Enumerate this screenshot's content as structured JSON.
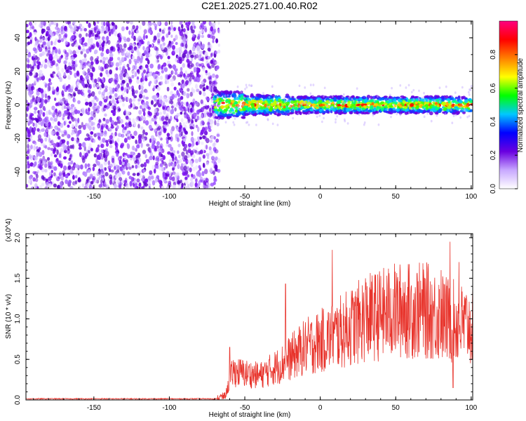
{
  "title": "C2E1.2025.271.00.40.R02",
  "colors": {
    "snr_line": "#e8342c",
    "scatter_main": "#6a00e0",
    "axis": "#000000"
  },
  "chart_data": [
    {
      "type": "heatmap",
      "name": "spectrogram",
      "xlabel": "Height of straight line (km)",
      "ylabel": "Frequency (Hz)",
      "xlim": [
        -195,
        101
      ],
      "ylim": [
        -50,
        50
      ],
      "xticks": [
        -150,
        -100,
        -50,
        0,
        50,
        100
      ],
      "yticks": [
        -40,
        -20,
        0,
        20,
        40
      ],
      "noise_region_x": [
        -195,
        -67
      ],
      "signal_band": {
        "x_start": -70,
        "x_end": 101,
        "center_hz": 0,
        "halfwidth_hz": 4
      },
      "colorbar": {
        "label": "Normalized spectral amplitude",
        "range": [
          0.0,
          1.0
        ],
        "ticks": [
          0.0,
          0.2,
          0.4,
          0.6,
          0.8
        ],
        "colors": [
          "#ffffff",
          "#c8a8ff",
          "#6a00e0",
          "#0000ff",
          "#00c8ff",
          "#00ff00",
          "#ffff00",
          "#ff8000",
          "#ff0000",
          "#ff0080"
        ]
      }
    },
    {
      "type": "line",
      "name": "snr",
      "xlabel": "Height of straight line (km)",
      "ylabel": "SNR (10 * v/v)",
      "y_multiplier": "(x10^4)",
      "xlim": [
        -195,
        101
      ],
      "ylim": [
        0,
        2.05
      ],
      "xticks": [
        -150,
        -100,
        -50,
        0,
        50,
        100
      ],
      "yticks": [
        0.0,
        0.5,
        1.0,
        1.5,
        2.0
      ],
      "trend_points": [
        [
          -195,
          0.01
        ],
        [
          -70,
          0.01
        ],
        [
          -63,
          0.05
        ],
        [
          -58,
          0.35
        ],
        [
          -40,
          0.3
        ],
        [
          -25,
          0.45
        ],
        [
          -10,
          0.65
        ],
        [
          10,
          0.8
        ],
        [
          30,
          1.0
        ],
        [
          50,
          1.1
        ],
        [
          70,
          1.1
        ],
        [
          90,
          0.95
        ],
        [
          101,
          0.9
        ]
      ],
      "spikes": [
        [
          -60,
          0.65
        ],
        [
          -23,
          1.43
        ],
        [
          8,
          1.85
        ],
        [
          30,
          1.5
        ],
        [
          55,
          1.45
        ],
        [
          80,
          1.6
        ],
        [
          86,
          1.95
        ],
        [
          88,
          0.15
        ],
        [
          92,
          1.7
        ]
      ]
    }
  ]
}
